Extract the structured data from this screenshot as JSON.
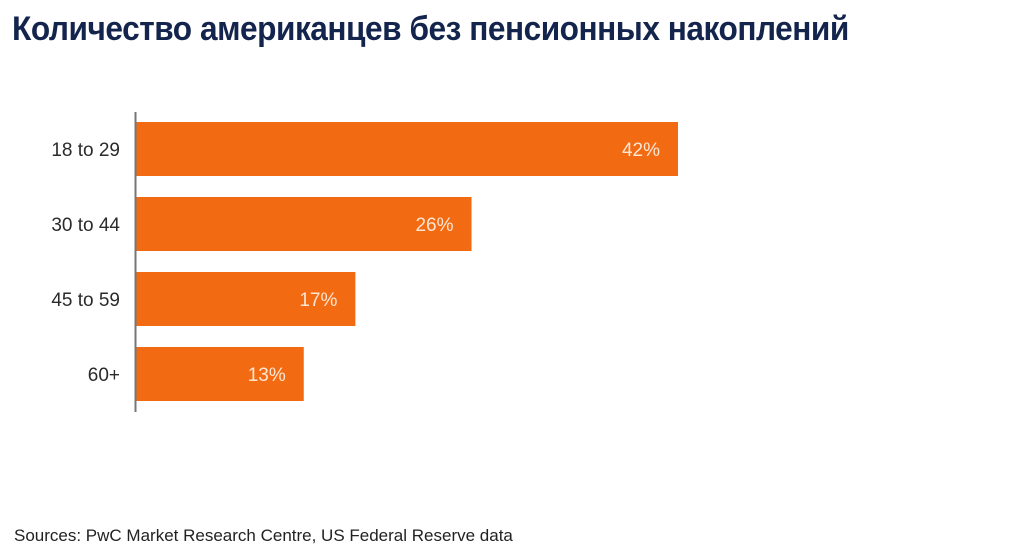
{
  "chart_data": {
    "type": "bar",
    "orientation": "horizontal",
    "title": "Количество американцев без пенсионных накоплений",
    "categories": [
      "18 to 29",
      "30 to 44",
      "45 to 59",
      "60+"
    ],
    "values": [
      42,
      26,
      17,
      13
    ],
    "value_labels": [
      "42%",
      "26%",
      "17%",
      "13%"
    ],
    "unit": "%",
    "xlabel": "",
    "ylabel": "",
    "xlim": [
      0,
      42
    ],
    "grid": false,
    "legend": "none",
    "bar_color": "#f26b12",
    "axis_color": "#777777",
    "source": "Sources: PwC Market Research Centre, US Federal Reserve data"
  }
}
